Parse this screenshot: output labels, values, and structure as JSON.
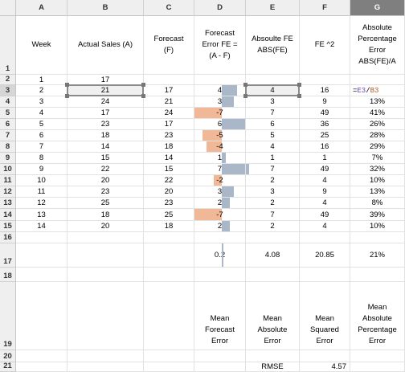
{
  "columns": [
    "A",
    "B",
    "C",
    "D",
    "E",
    "F",
    "G"
  ],
  "selected_column": "G",
  "row_numbers": [
    "1",
    "2",
    "3",
    "4",
    "5",
    "6",
    "7",
    "8",
    "9",
    "10",
    "11",
    "12",
    "13",
    "14",
    "15",
    "16",
    "17",
    "18",
    "19",
    "20",
    "21"
  ],
  "selected_row": "3",
  "headers": {
    "week": "Week",
    "actual": "Actual Sales (A)",
    "forecast": "Forecast (F)",
    "fe": "Forecast Error FE = (A - F)",
    "abs_fe": "Absoulte FE ABS(FE)",
    "fe_sq": "FE ^2",
    "ape": "Absolute Percentage Error ABS(FE)/A"
  },
  "rows": [
    {
      "week": "1",
      "actual": "17",
      "forecast": "",
      "fe": "",
      "abs_fe": "",
      "fe_sq": "",
      "ape": ""
    },
    {
      "week": "2",
      "actual": "21",
      "forecast": "17",
      "fe": "4",
      "abs_fe": "4",
      "fe_sq": "16",
      "ape": ""
    },
    {
      "week": "3",
      "actual": "24",
      "forecast": "21",
      "fe": "3",
      "abs_fe": "3",
      "fe_sq": "9",
      "ape": "13%"
    },
    {
      "week": "4",
      "actual": "17",
      "forecast": "24",
      "fe": "-7",
      "abs_fe": "7",
      "fe_sq": "49",
      "ape": "41%"
    },
    {
      "week": "5",
      "actual": "23",
      "forecast": "17",
      "fe": "6",
      "abs_fe": "6",
      "fe_sq": "36",
      "ape": "26%"
    },
    {
      "week": "6",
      "actual": "18",
      "forecast": "23",
      "fe": "-5",
      "abs_fe": "5",
      "fe_sq": "25",
      "ape": "28%"
    },
    {
      "week": "7",
      "actual": "14",
      "forecast": "18",
      "fe": "-4",
      "abs_fe": "4",
      "fe_sq": "16",
      "ape": "29%"
    },
    {
      "week": "8",
      "actual": "15",
      "forecast": "14",
      "fe": "1",
      "abs_fe": "1",
      "fe_sq": "1",
      "ape": "7%"
    },
    {
      "week": "9",
      "actual": "22",
      "forecast": "15",
      "fe": "7",
      "abs_fe": "7",
      "fe_sq": "49",
      "ape": "32%"
    },
    {
      "week": "10",
      "actual": "20",
      "forecast": "22",
      "fe": "-2",
      "abs_fe": "2",
      "fe_sq": "4",
      "ape": "10%"
    },
    {
      "week": "11",
      "actual": "23",
      "forecast": "20",
      "fe": "3",
      "abs_fe": "3",
      "fe_sq": "9",
      "ape": "13%"
    },
    {
      "week": "12",
      "actual": "25",
      "forecast": "23",
      "fe": "2",
      "abs_fe": "2",
      "fe_sq": "4",
      "ape": "8%"
    },
    {
      "week": "13",
      "actual": "18",
      "forecast": "25",
      "fe": "-7",
      "abs_fe": "7",
      "fe_sq": "49",
      "ape": "39%"
    },
    {
      "week": "14",
      "actual": "20",
      "forecast": "18",
      "fe": "2",
      "abs_fe": "2",
      "fe_sq": "4",
      "ape": "10%"
    }
  ],
  "fe_values": [
    4,
    3,
    -7,
    6,
    -5,
    -4,
    1,
    7,
    -2,
    3,
    2,
    -7,
    2
  ],
  "fe_bar_max": 7,
  "formula": {
    "prefix": "=",
    "ref1": "E3",
    "slash": "/",
    "ref2": "B3"
  },
  "summary": {
    "fe": "0.2",
    "abs_fe": "4.08",
    "fe_sq": "20.85",
    "ape": "21%"
  },
  "summary_labels": {
    "fe": "Mean Forecast Error",
    "abs_fe": "Mean Absolute Error",
    "fe_sq": "Mean Squared Error",
    "ape": "Mean Absolute Percentage Error"
  },
  "rmse_label": "RMSE",
  "rmse_value": "4.57",
  "colors": {
    "positive_bar": "#a9b7c9",
    "negative_bar": "#f0b896",
    "ref_e3": "#6f44c7",
    "ref_b3": "#b8582a"
  }
}
